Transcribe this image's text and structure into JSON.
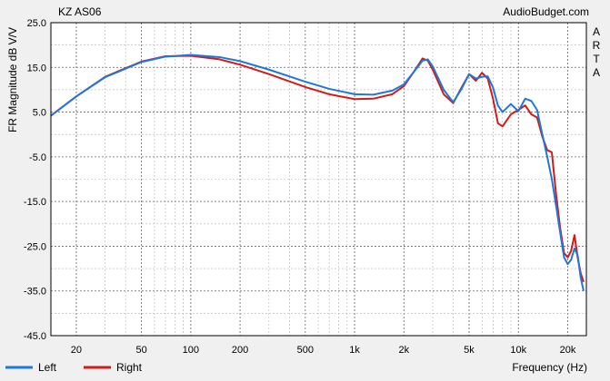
{
  "chart_data": {
    "type": "line",
    "title": "KZ AS06",
    "source_label": "AudioBudget.com",
    "side_label": [
      "A",
      "R",
      "T",
      "A"
    ],
    "xlabel": "Frequency (Hz)",
    "ylabel": "FR Magnitude dB V/V",
    "x_scale": "log",
    "xlim": [
      14,
      26000
    ],
    "ylim": [
      -45,
      25
    ],
    "x_tick_values": [
      20,
      50,
      100,
      200,
      500,
      1000,
      2000,
      5000,
      10000,
      20000
    ],
    "x_tick_labels": [
      "20",
      "50",
      "100",
      "200",
      "500",
      "1k",
      "2k",
      "5k",
      "10k",
      "20k"
    ],
    "y_tick_values": [
      25,
      15,
      5,
      -5,
      -15,
      -25,
      -35,
      -45
    ],
    "y_tick_labels": [
      "25.0",
      "15.0",
      "5.0",
      "-5.0",
      "-15.0",
      "-25.0",
      "-35.0",
      "-45.0"
    ],
    "grid": true,
    "legend_position": "bottom-left",
    "series": [
      {
        "name": "Left",
        "color": "#1e78dc",
        "points": [
          [
            14,
            4.2
          ],
          [
            20,
            8.5
          ],
          [
            30,
            12.8
          ],
          [
            50,
            16.2
          ],
          [
            70,
            17.4
          ],
          [
            100,
            17.8
          ],
          [
            150,
            17.3
          ],
          [
            200,
            16.4
          ],
          [
            300,
            14.5
          ],
          [
            500,
            11.8
          ],
          [
            700,
            10.2
          ],
          [
            1000,
            9.0
          ],
          [
            1300,
            8.9
          ],
          [
            1700,
            9.8
          ],
          [
            2000,
            11.2
          ],
          [
            2300,
            14.0
          ],
          [
            2600,
            16.5
          ],
          [
            2800,
            16.8
          ],
          [
            3000,
            15.2
          ],
          [
            3500,
            10.0
          ],
          [
            4000,
            7.2
          ],
          [
            4500,
            10.2
          ],
          [
            5000,
            13.5
          ],
          [
            5500,
            12.5
          ],
          [
            6000,
            12.9
          ],
          [
            6500,
            13.0
          ],
          [
            7000,
            10.5
          ],
          [
            7500,
            6.5
          ],
          [
            8000,
            5.0
          ],
          [
            9000,
            6.8
          ],
          [
            10000,
            5.2
          ],
          [
            11000,
            8.0
          ],
          [
            12000,
            7.5
          ],
          [
            13000,
            5.5
          ],
          [
            14000,
            0.0
          ],
          [
            15000,
            -5.0
          ],
          [
            16000,
            -10.0
          ],
          [
            17000,
            -16.0
          ],
          [
            18000,
            -22.0
          ],
          [
            19000,
            -27.5
          ],
          [
            20000,
            -29.0
          ],
          [
            21000,
            -28.0
          ],
          [
            22000,
            -25.5
          ],
          [
            23000,
            -27.0
          ],
          [
            24000,
            -32.0
          ],
          [
            25000,
            -35.0
          ]
        ]
      },
      {
        "name": "Right",
        "color": "#d41a1a",
        "points": [
          [
            14,
            4.2
          ],
          [
            20,
            8.5
          ],
          [
            30,
            12.9
          ],
          [
            50,
            16.3
          ],
          [
            70,
            17.5
          ],
          [
            100,
            17.6
          ],
          [
            150,
            16.8
          ],
          [
            200,
            15.6
          ],
          [
            300,
            13.5
          ],
          [
            500,
            10.6
          ],
          [
            700,
            9.0
          ],
          [
            1000,
            7.9
          ],
          [
            1300,
            8.0
          ],
          [
            1700,
            9.0
          ],
          [
            2000,
            10.8
          ],
          [
            2300,
            14.0
          ],
          [
            2600,
            17.0
          ],
          [
            2800,
            16.5
          ],
          [
            3000,
            14.5
          ],
          [
            3500,
            9.0
          ],
          [
            4000,
            7.0
          ],
          [
            4500,
            10.5
          ],
          [
            5000,
            13.5
          ],
          [
            5500,
            12.0
          ],
          [
            6000,
            13.8
          ],
          [
            6500,
            12.5
          ],
          [
            7000,
            8.0
          ],
          [
            7500,
            2.5
          ],
          [
            8000,
            1.8
          ],
          [
            9000,
            4.5
          ],
          [
            10000,
            5.5
          ],
          [
            11000,
            6.5
          ],
          [
            12000,
            4.5
          ],
          [
            13000,
            3.8
          ],
          [
            14000,
            -0.5
          ],
          [
            15000,
            -3.5
          ],
          [
            16000,
            -4.0
          ],
          [
            17000,
            -13.5
          ],
          [
            18000,
            -21.0
          ],
          [
            19000,
            -26.5
          ],
          [
            20000,
            -27.5
          ],
          [
            21000,
            -26.0
          ],
          [
            22000,
            -22.5
          ],
          [
            23000,
            -27.5
          ],
          [
            24000,
            -31.0
          ],
          [
            25000,
            -33.0
          ]
        ]
      }
    ]
  }
}
